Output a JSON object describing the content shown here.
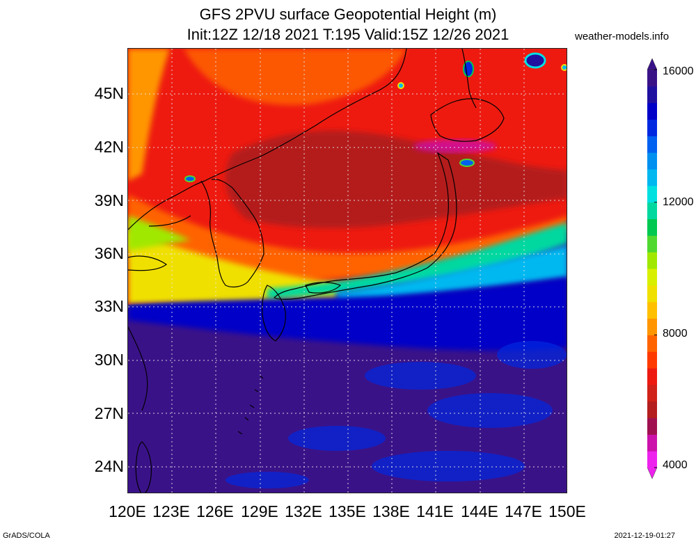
{
  "title": {
    "line1": "GFS 2PVU surface Geopotential Height (m)",
    "line2": "Init:12Z 12/18 2021 T:195 Valid:15Z 12/26 2021"
  },
  "credit": "weather-models.info",
  "footer": {
    "left": "GrADS/COLA",
    "right": "2021-12-19-01:27"
  },
  "axes": {
    "lat_labels": [
      "45N",
      "42N",
      "39N",
      "36N",
      "33N",
      "30N",
      "27N",
      "24N"
    ],
    "lon_labels": [
      "120E",
      "123E",
      "126E",
      "129E",
      "132E",
      "135E",
      "138E",
      "141E",
      "144E",
      "147E",
      "150E"
    ]
  },
  "colorbar": {
    "labels": [
      "16000",
      "12000",
      "8000",
      "4000"
    ],
    "colors": [
      "#ee22ee",
      "#cc11aa",
      "#a01050",
      "#b41e1e",
      "#d02218",
      "#ee1a10",
      "#ff3a00",
      "#ff6400",
      "#ff9600",
      "#ffc000",
      "#f0e000",
      "#d8f000",
      "#a0e800",
      "#50d830",
      "#00c850",
      "#00d8a0",
      "#00e0e0",
      "#00b8f0",
      "#0090f0",
      "#0060f0",
      "#0028e0",
      "#0000c8",
      "#2010a0",
      "#3a1288"
    ]
  },
  "map": {
    "region": "East Asia / Japan",
    "lon_range": [
      120,
      150
    ],
    "lat_range": [
      22.5,
      47.5
    ]
  }
}
